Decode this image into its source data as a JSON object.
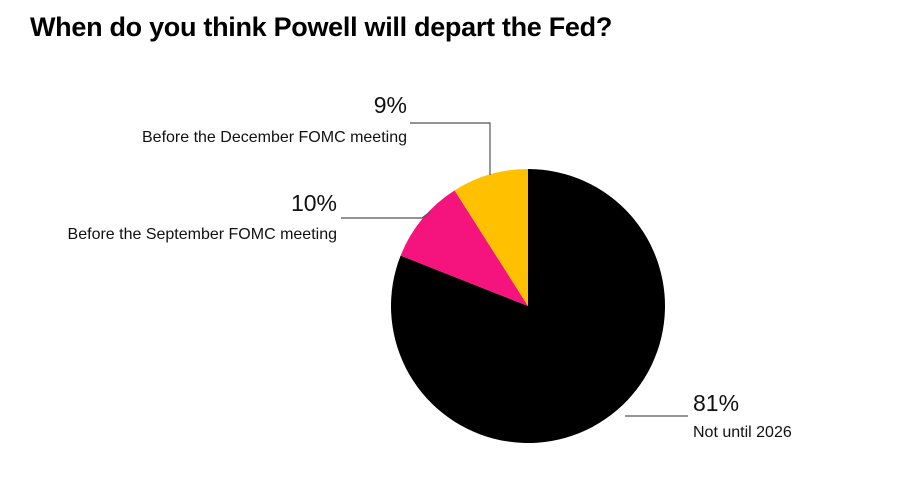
{
  "chart_data": {
    "type": "pie",
    "title": "When do you think Powell will depart the Fed?",
    "categories": [
      "Not until 2026",
      "Before the September FOMC meeting",
      "Before the December FOMC meeting"
    ],
    "values": [
      81,
      10,
      9
    ],
    "value_labels": [
      "81%",
      "10%",
      "9%"
    ],
    "colors": [
      "#000000",
      "#f5137e",
      "#ffc000"
    ]
  }
}
